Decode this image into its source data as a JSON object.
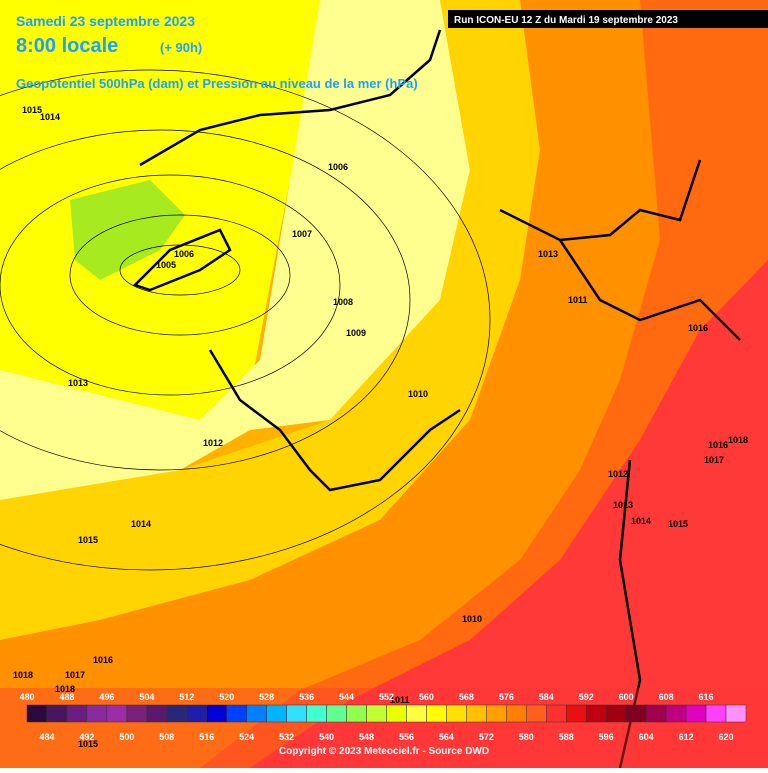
{
  "header": {
    "date": "Samedi 23 septembre 2023",
    "time": "8:00 locale",
    "lead": "(+ 90h)",
    "title": "Geopotentiel 500hPa (dam) et Pression au niveau de la mer (hPa)",
    "run": "Run ICON-EU 12 Z du Mardi 19 septembre 2023"
  },
  "isobar_labels": [
    "1015",
    "1014",
    "1006",
    "1007",
    "1006",
    "1005",
    "1008",
    "1009",
    "1013",
    "1011",
    "1016",
    "1013",
    "1010",
    "1012",
    "1016",
    "1018",
    "1017",
    "1012",
    "1013",
    "1014",
    "1015",
    "1014",
    "1015",
    "1016",
    "1018",
    "1017",
    "1018",
    "1011",
    "1015",
    "1010"
  ],
  "legend": {
    "values": [
      480,
      484,
      488,
      492,
      496,
      500,
      504,
      508,
      512,
      516,
      520,
      524,
      528,
      532,
      536,
      540,
      544,
      548,
      552,
      556,
      560,
      564,
      568,
      572,
      576,
      580,
      584,
      588,
      592,
      596,
      600,
      604,
      608,
      612,
      616,
      620
    ],
    "colors": [
      "#2b0a3d",
      "#4a1560",
      "#6a1e82",
      "#8a2aa0",
      "#9b2da8",
      "#7a1f7a",
      "#5a1870",
      "#28287a",
      "#1e1ea8",
      "#0000d8",
      "#0040ff",
      "#0080ff",
      "#00b4ff",
      "#30e0ff",
      "#40ffd0",
      "#60ff90",
      "#90ff50",
      "#c0ff30",
      "#e8ff00",
      "#ffff40",
      "#ffff00",
      "#ffe000",
      "#ffc000",
      "#ffa000",
      "#ff8000",
      "#ff6020",
      "#ff3030",
      "#e81010",
      "#c00010",
      "#a00010",
      "#800020",
      "#a00050",
      "#c00080",
      "#e000c0",
      "#ff40ff",
      "#ff90ff"
    ]
  },
  "footer": "Copyright © 2023 Meteociel.fr - Source DWD"
}
